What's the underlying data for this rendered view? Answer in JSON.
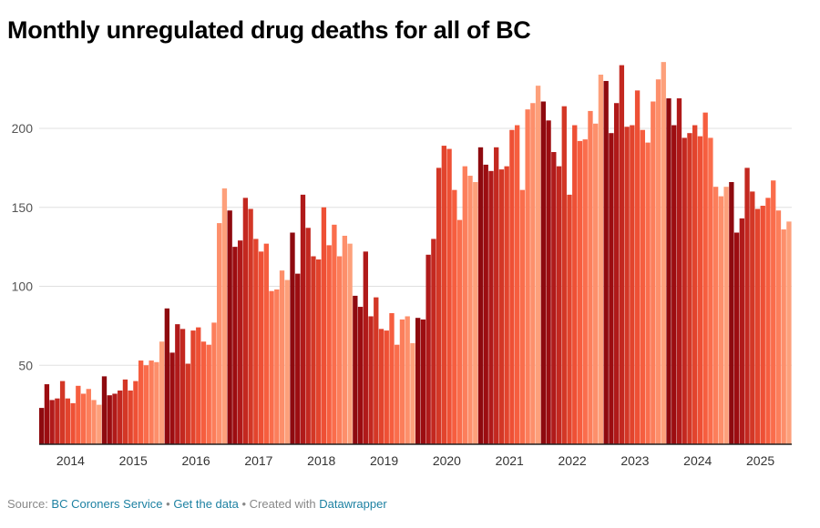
{
  "chart_data": {
    "type": "bar",
    "title": "Monthly unregulated drug deaths for all of BC",
    "xlabel": "",
    "ylabel": "",
    "ylim": [
      0,
      245
    ],
    "yticks": [
      50,
      100,
      150,
      200
    ],
    "grid": true,
    "x_tick_labels": [
      "2014",
      "2015",
      "2016",
      "2017",
      "2018",
      "2019",
      "2020",
      "2021",
      "2022",
      "2023",
      "2024",
      "2025"
    ],
    "month_colors": [
      "#8e0a0f",
      "#9c0d11",
      "#b01a1a",
      "#c32820",
      "#d33726",
      "#e2442d",
      "#ee5035",
      "#f65e3f",
      "#fa6d4c",
      "#fc7e5b",
      "#fd8f6b",
      "#fda07b"
    ],
    "series": [
      {
        "year": "2014",
        "values": [
          23,
          38,
          28,
          29,
          40,
          29,
          26,
          37,
          32,
          35,
          28,
          25
        ]
      },
      {
        "year": "2015",
        "values": [
          43,
          31,
          32,
          34,
          41,
          34,
          40,
          53,
          50,
          53,
          52,
          65
        ]
      },
      {
        "year": "2016",
        "values": [
          86,
          58,
          76,
          73,
          51,
          72,
          74,
          65,
          63,
          77,
          140,
          162
        ]
      },
      {
        "year": "2017",
        "values": [
          148,
          125,
          129,
          156,
          149,
          130,
          122,
          127,
          97,
          98,
          110,
          104
        ]
      },
      {
        "year": "2018",
        "values": [
          134,
          108,
          158,
          137,
          119,
          117,
          150,
          126,
          139,
          119,
          132,
          127
        ]
      },
      {
        "year": "2019",
        "values": [
          94,
          87,
          122,
          81,
          93,
          73,
          72,
          83,
          63,
          79,
          81,
          64
        ]
      },
      {
        "year": "2020",
        "values": [
          80,
          79,
          120,
          130,
          175,
          189,
          187,
          161,
          142,
          176,
          170,
          166
        ]
      },
      {
        "year": "2021",
        "values": [
          188,
          177,
          173,
          188,
          174,
          176,
          199,
          202,
          161,
          212,
          216,
          227
        ]
      },
      {
        "year": "2022",
        "values": [
          217,
          205,
          185,
          176,
          214,
          158,
          202,
          192,
          193,
          211,
          203,
          234
        ]
      },
      {
        "year": "2023",
        "values": [
          230,
          197,
          216,
          240,
          201,
          202,
          224,
          199,
          191,
          217,
          231,
          242
        ]
      },
      {
        "year": "2024",
        "values": [
          219,
          202,
          219,
          194,
          197,
          202,
          195,
          210,
          194,
          163,
          157,
          163
        ]
      },
      {
        "year": "2025",
        "values": [
          166,
          134,
          143,
          175,
          160,
          149,
          151,
          156,
          167,
          148,
          136,
          141
        ]
      }
    ]
  },
  "footer": {
    "source_label": "Source: ",
    "source_link": "BC Coroners Service",
    "sep1": " • ",
    "data_link": "Get the data",
    "sep2": " • Created with ",
    "dw_link": "Datawrapper"
  }
}
